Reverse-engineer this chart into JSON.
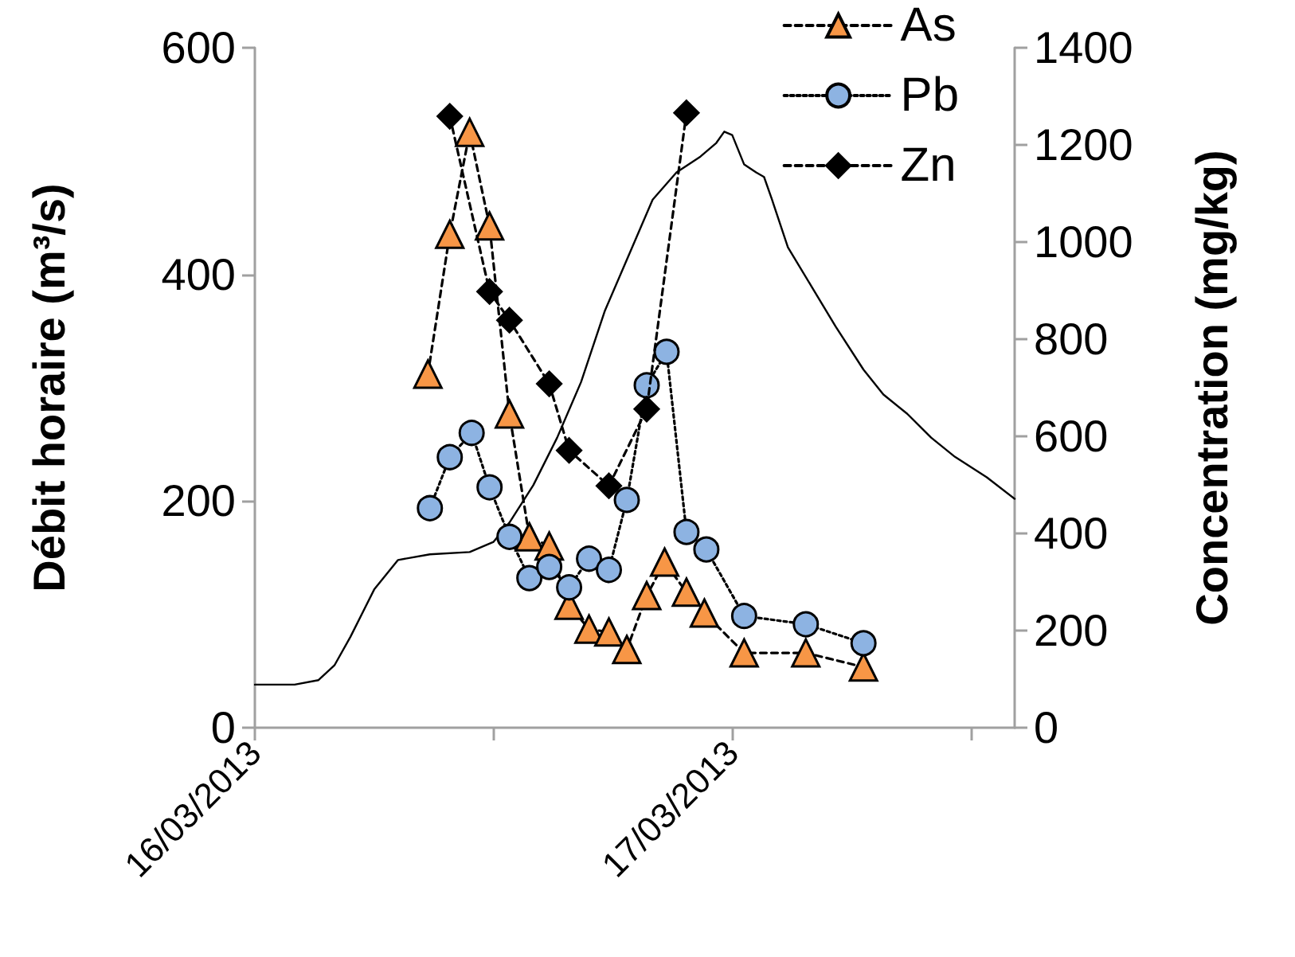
{
  "chart_data": {
    "type": "line",
    "ylabel": "Débit horaire (m³/s)",
    "y2label": "Concentration (mg/kg)",
    "xlim": [
      "2013-03-16T00:00",
      "2013-03-17T14:12"
    ],
    "xticks": [
      {
        "value": "2013-03-16T00:00",
        "label": "16/03/2013"
      },
      {
        "value": "2013-03-16T12:00",
        "label": null
      },
      {
        "value": "2013-03-17T00:00",
        "label": "17/03/2013"
      },
      {
        "value": "2013-03-17T12:00",
        "label": null
      }
    ],
    "ylim": [
      0,
      600
    ],
    "yticks": [
      0,
      200,
      400,
      600
    ],
    "y2lim": [
      0,
      1400
    ],
    "y2ticks": [
      0,
      200,
      400,
      600,
      800,
      1000,
      1200,
      1400
    ],
    "grid": false,
    "legend": "top right",
    "series": [
      {
        "color": "#000000",
        "marker": "none",
        "line_style": "solid",
        "x": [
          "2013-03-16T00:00",
          "2013-03-16T02:00",
          "2013-03-16T03:12",
          "2013-03-16T04:00",
          "2013-03-16T04:48",
          "2013-03-16T06:00",
          "2013-03-16T07:12",
          "2013-03-16T08:48",
          "2013-03-16T10:48",
          "2013-03-16T12:00",
          "2013-03-16T12:48",
          "2013-03-16T14:00",
          "2013-03-16T15:12",
          "2013-03-16T16:24",
          "2013-03-16T17:36",
          "2013-03-16T18:48",
          "2013-03-16T20:00",
          "2013-03-16T21:12",
          "2013-03-16T22:24",
          "2013-03-16T23:12",
          "2013-03-16T23:36",
          "2013-03-17T00:00",
          "2013-03-17T00:36",
          "2013-03-17T01:12",
          "2013-03-17T01:36",
          "2013-03-17T02:00",
          "2013-03-17T02:48",
          "2013-03-17T04:00",
          "2013-03-17T05:12",
          "2013-03-17T06:36",
          "2013-03-17T07:36",
          "2013-03-17T08:48",
          "2013-03-17T10:00",
          "2013-03-17T11:12",
          "2013-03-17T12:48",
          "2013-03-17T14:12"
        ],
        "values": [
          38,
          38,
          42,
          55,
          80,
          122,
          148,
          153,
          155,
          164,
          181,
          214,
          256,
          305,
          368,
          417,
          466,
          490,
          504,
          516,
          526,
          523,
          497,
          490,
          486,
          466,
          424,
          389,
          354,
          316,
          294,
          277,
          256,
          239,
          221,
          202
        ]
      },
      {
        "name": "As",
        "color": "#f79646",
        "axis": "y2",
        "marker": "triangle",
        "line_style": "dashed",
        "x": [
          "2013-03-16T08:42",
          "2013-03-16T09:48",
          "2013-03-16T10:48",
          "2013-03-16T11:48",
          "2013-03-16T12:48",
          "2013-03-16T13:48",
          "2013-03-16T14:48",
          "2013-03-16T15:48",
          "2013-03-16T16:48",
          "2013-03-16T17:48",
          "2013-03-16T18:42",
          "2013-03-16T19:42",
          "2013-03-16T20:36",
          "2013-03-16T21:42",
          "2013-03-16T22:36",
          "2013-03-17T00:36",
          "2013-03-17T03:42",
          "2013-03-17T06:36"
        ],
        "values": [
          728,
          1016,
          1226,
          1033,
          646,
          393,
          374,
          252,
          203,
          197,
          161,
          272,
          341,
          279,
          236,
          154,
          154,
          125
        ]
      },
      {
        "name": "Pb",
        "color": "#8db3e2",
        "axis": "y2",
        "marker": "circle",
        "line_style": "dotted",
        "x": [
          "2013-03-16T08:48",
          "2013-03-16T09:48",
          "2013-03-16T10:54",
          "2013-03-16T11:48",
          "2013-03-16T12:48",
          "2013-03-16T13:48",
          "2013-03-16T14:48",
          "2013-03-16T15:48",
          "2013-03-16T16:48",
          "2013-03-16T17:48",
          "2013-03-16T18:42",
          "2013-03-16T19:42",
          "2013-03-16T20:42",
          "2013-03-16T21:42",
          "2013-03-16T22:42",
          "2013-03-17T00:36",
          "2013-03-17T03:42",
          "2013-03-17T06:36"
        ],
        "values": [
          452,
          557,
          607,
          495,
          393,
          308,
          331,
          289,
          348,
          325,
          469,
          705,
          774,
          403,
          367,
          230,
          213,
          174
        ]
      },
      {
        "name": "Zn",
        "color": "#000000",
        "axis": "y2",
        "marker": "diamond",
        "line_style": "dashed",
        "x": [
          "2013-03-16T09:48",
          "2013-03-16T11:48",
          "2013-03-16T12:48",
          "2013-03-16T14:48",
          "2013-03-16T15:48",
          "2013-03-16T17:48",
          "2013-03-16T19:42",
          "2013-03-16T21:42"
        ],
        "values": [
          1259,
          898,
          839,
          708,
          571,
          498,
          656,
          1266
        ]
      }
    ]
  }
}
